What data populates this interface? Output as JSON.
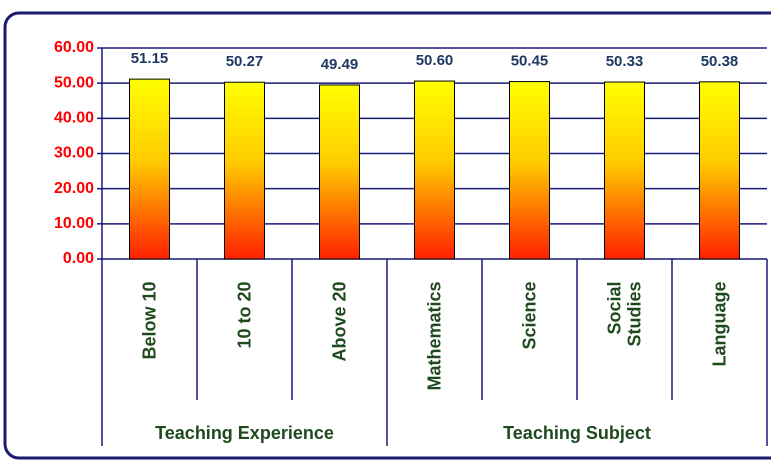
{
  "chart_data": {
    "type": "bar",
    "categories": [
      "Below 10",
      "10 to 20",
      "Above 20",
      "Mathematics",
      "Science",
      "Social Studies",
      "Language"
    ],
    "values": [
      51.15,
      50.27,
      49.49,
      50.6,
      50.45,
      50.33,
      50.38
    ],
    "value_labels": [
      "51.15",
      "50.27",
      "49.49",
      "50.60",
      "50.45",
      "50.33",
      "50.38"
    ],
    "groups": [
      "Teaching Experience",
      "Teaching Subject"
    ],
    "ylim": [
      0,
      60
    ],
    "yticks": [
      {
        "value": 0,
        "label": "0.00"
      },
      {
        "value": 10,
        "label": "10.00"
      },
      {
        "value": 20,
        "label": "20.00"
      },
      {
        "value": 30,
        "label": "30.00"
      },
      {
        "value": 40,
        "label": "40.00"
      },
      {
        "value": 50,
        "label": "50.00"
      },
      {
        "value": 60,
        "label": "60.00"
      }
    ],
    "grid": true,
    "colors": {
      "top": "#ffff00",
      "bottom": "#ff2000",
      "axis": "#1a1a7a",
      "tick_label": "#ff0000",
      "value_label": "#1f3864"
    }
  }
}
